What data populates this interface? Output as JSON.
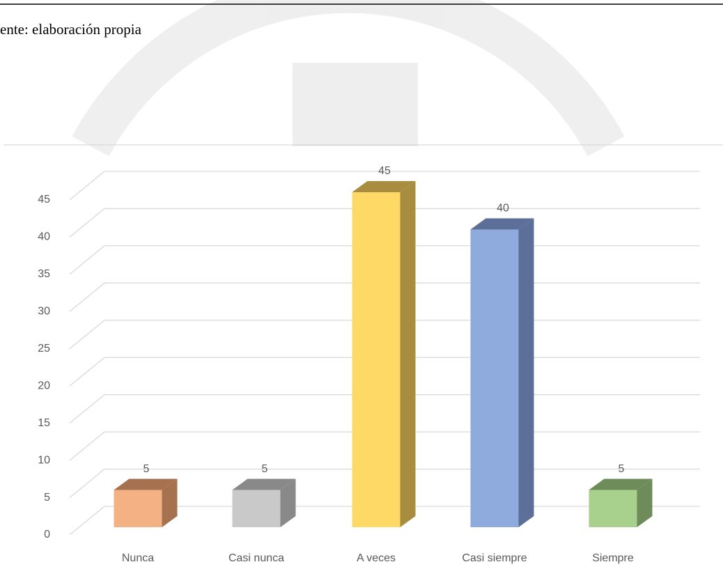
{
  "caption": "ente: elaboración propia",
  "chart_data": {
    "type": "bar3d",
    "categories": [
      "Nunca",
      "Casi nunca",
      "A veces",
      "Casi siempre",
      "Siempre"
    ],
    "values": [
      5,
      5,
      45,
      40,
      5
    ],
    "colors": [
      "#f4b183",
      "#c9c9c9",
      "#ffd966",
      "#8faadc",
      "#a9d18e"
    ],
    "side_colors": [
      "#a5714e",
      "#898989",
      "#a88d40",
      "#5b6f99",
      "#6e8c5a"
    ],
    "ylim": [
      0,
      45
    ],
    "yticks": [
      0,
      5,
      10,
      15,
      20,
      25,
      30,
      35,
      40,
      45
    ],
    "grid": true
  }
}
